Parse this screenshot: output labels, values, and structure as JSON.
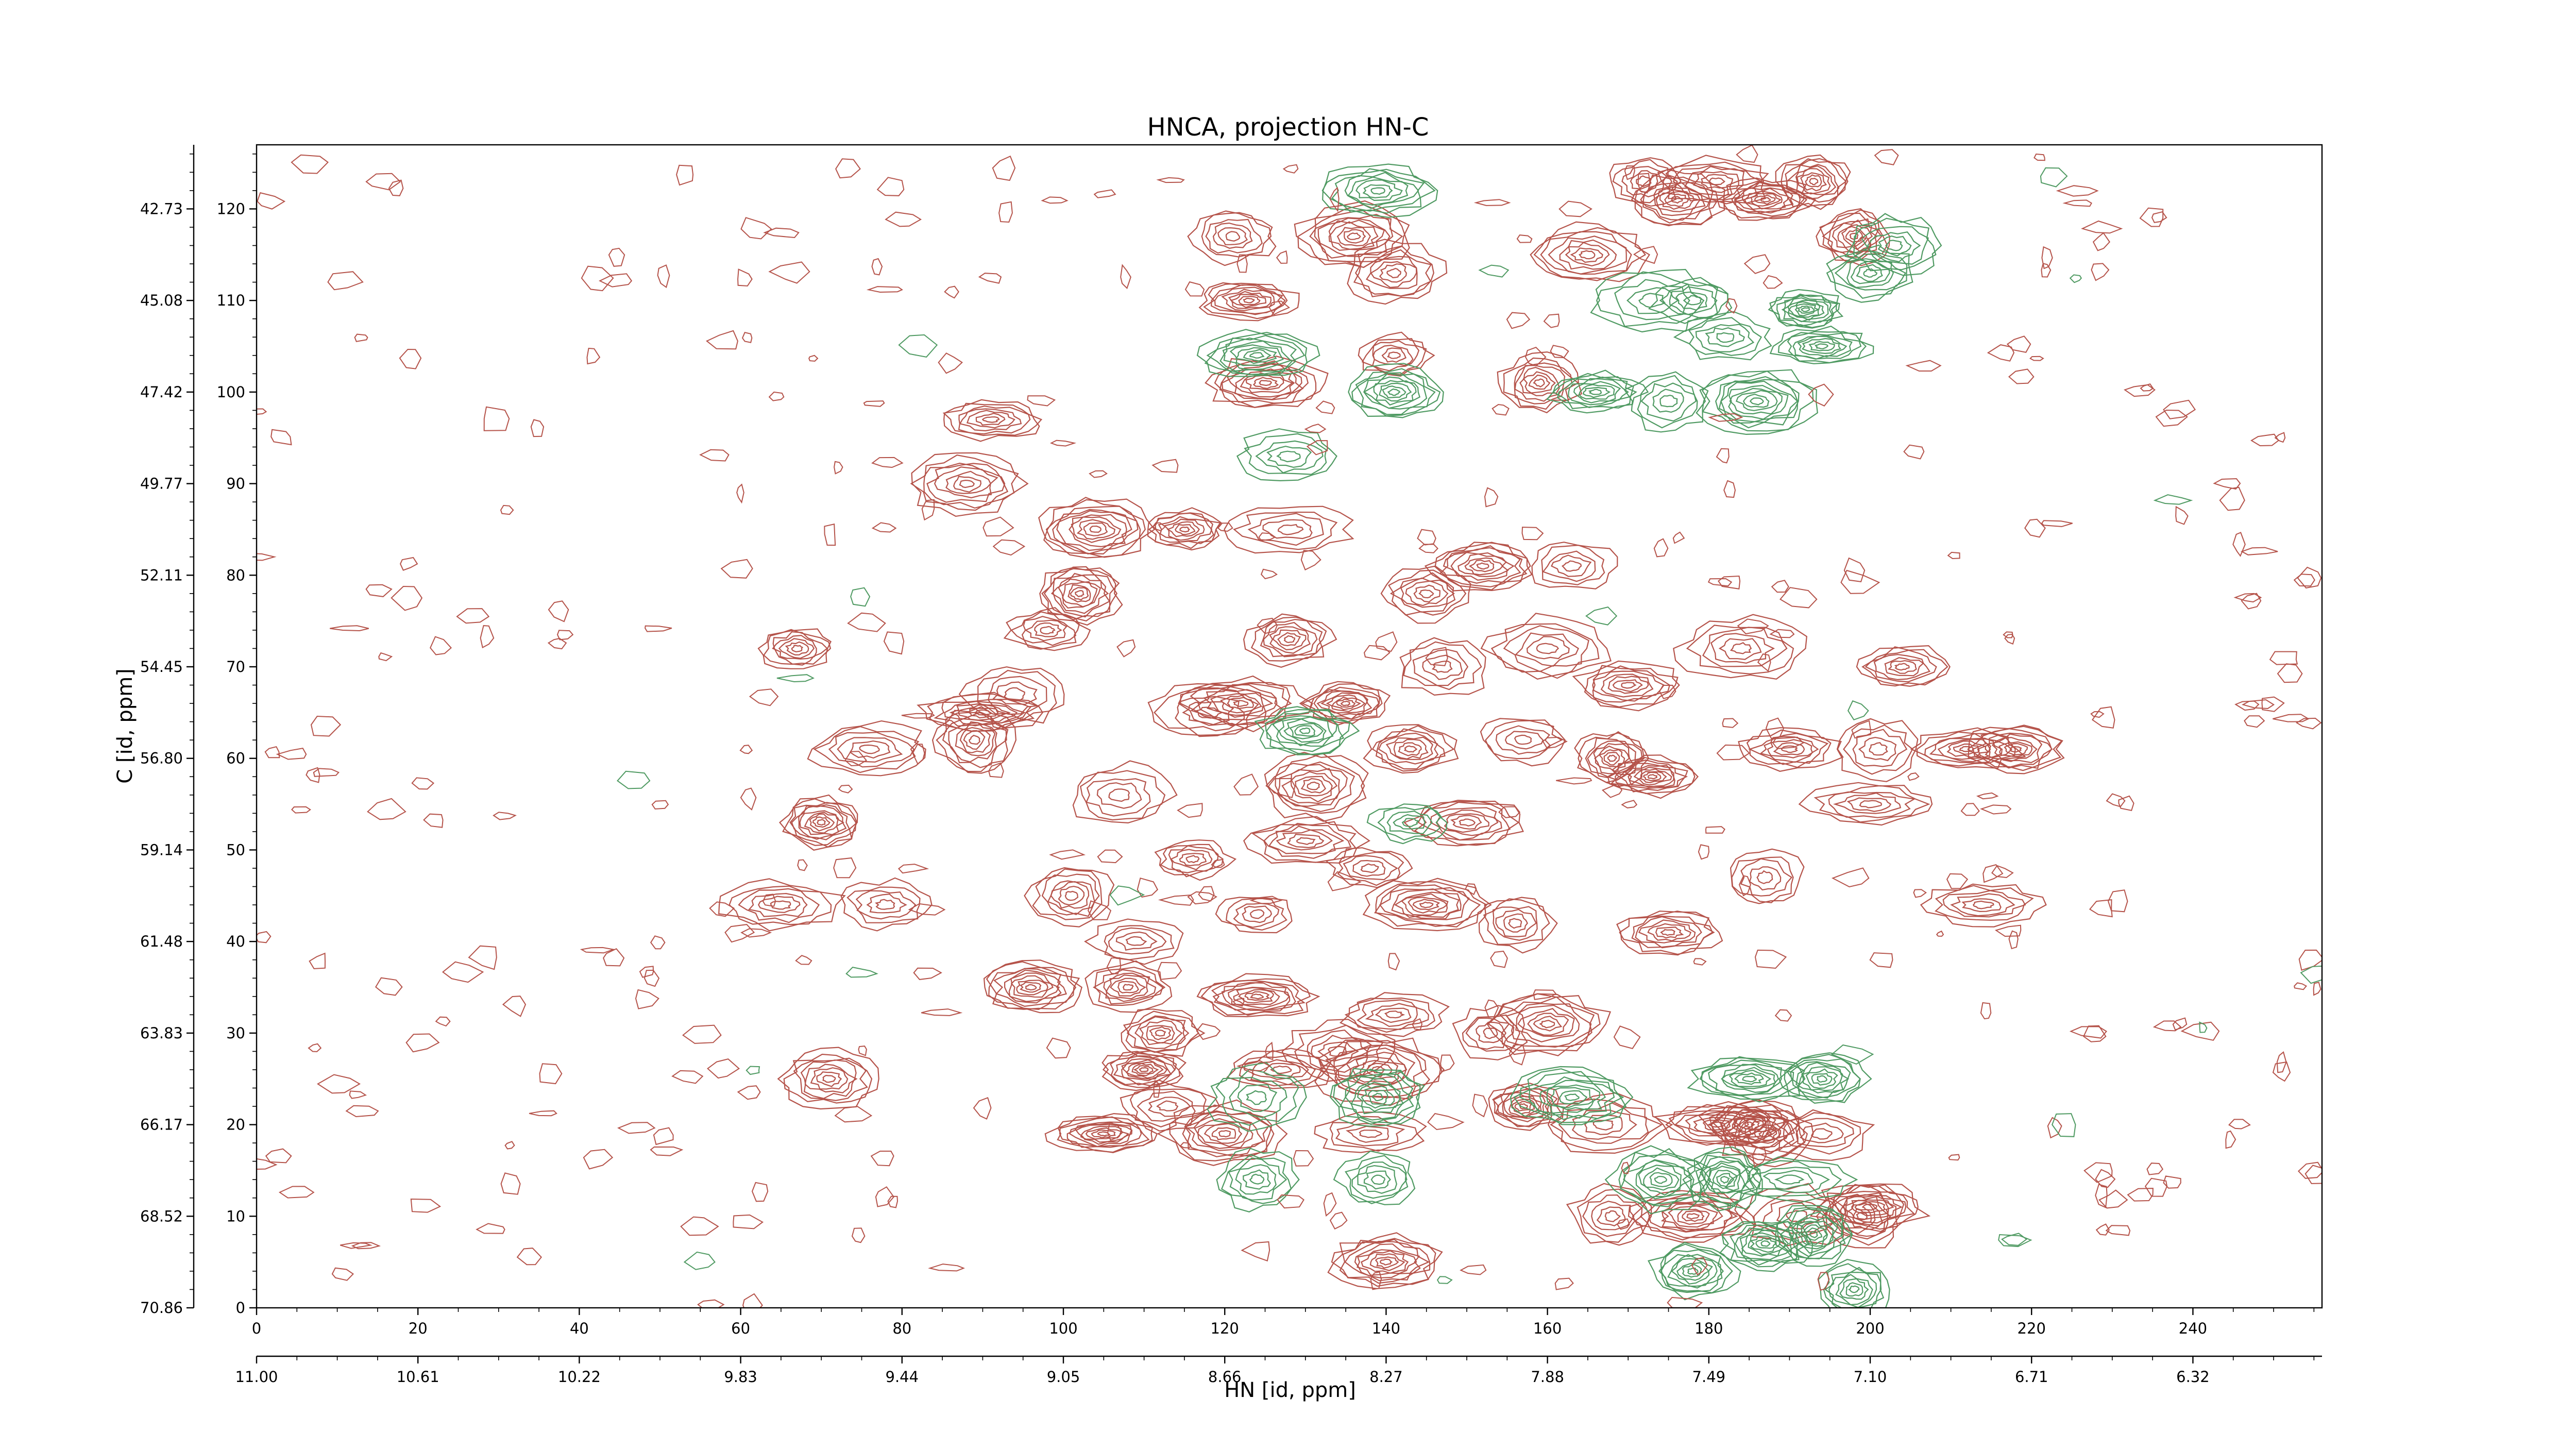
{
  "chart_data": {
    "type": "contour",
    "title": "HNCA, projection HN-C",
    "xlabel": "HN [id, ppm]",
    "ylabel": "C [id, ppm]",
    "x_index_ticks": [
      "0",
      "20",
      "40",
      "60",
      "80",
      "100",
      "120",
      "140",
      "160",
      "180",
      "200",
      "220",
      "240"
    ],
    "x_ppm_ticks": [
      "11.00",
      "10.61",
      "10.22",
      "9.83",
      "9.44",
      "9.05",
      "8.66",
      "8.27",
      "7.88",
      "7.49",
      "7.10",
      "6.71",
      "6.32"
    ],
    "y_index_ticks": [
      "0",
      "10",
      "20",
      "30",
      "40",
      "50",
      "60",
      "70",
      "80",
      "90",
      "100",
      "110",
      "120"
    ],
    "y_ppm_ticks": [
      "70.86",
      "68.52",
      "66.17",
      "63.83",
      "61.48",
      "59.14",
      "56.80",
      "54.45",
      "52.11",
      "49.77",
      "47.42",
      "45.08",
      "42.73"
    ],
    "xlim": [
      0,
      256
    ],
    "ylim": [
      0,
      127
    ],
    "grid": false,
    "legend": "none",
    "colors": {
      "positive": "#b5534a",
      "negative": "#4f9a62"
    },
    "peaks_positive": [
      {
        "x": 67,
        "y": 72
      },
      {
        "x": 76,
        "y": 61
      },
      {
        "x": 90,
        "y": 65
      },
      {
        "x": 70,
        "y": 53
      },
      {
        "x": 65,
        "y": 44
      },
      {
        "x": 78,
        "y": 44
      },
      {
        "x": 71,
        "y": 25
      },
      {
        "x": 88,
        "y": 90
      },
      {
        "x": 91,
        "y": 97
      },
      {
        "x": 98,
        "y": 74
      },
      {
        "x": 104,
        "y": 85
      },
      {
        "x": 115,
        "y": 85
      },
      {
        "x": 128,
        "y": 85
      },
      {
        "x": 107,
        "y": 56
      },
      {
        "x": 101,
        "y": 45
      },
      {
        "x": 96,
        "y": 35
      },
      {
        "x": 109,
        "y": 40
      },
      {
        "x": 108,
        "y": 35
      },
      {
        "x": 110,
        "y": 26
      },
      {
        "x": 105,
        "y": 19
      },
      {
        "x": 113,
        "y": 22
      },
      {
        "x": 120,
        "y": 19
      },
      {
        "x": 124,
        "y": 43
      },
      {
        "x": 124,
        "y": 34
      },
      {
        "x": 122,
        "y": 66
      },
      {
        "x": 128,
        "y": 73
      },
      {
        "x": 135,
        "y": 66
      },
      {
        "x": 131,
        "y": 57
      },
      {
        "x": 143,
        "y": 61
      },
      {
        "x": 147,
        "y": 70
      },
      {
        "x": 150,
        "y": 53
      },
      {
        "x": 138,
        "y": 48
      },
      {
        "x": 145,
        "y": 44
      },
      {
        "x": 141,
        "y": 32
      },
      {
        "x": 156,
        "y": 42
      },
      {
        "x": 157,
        "y": 62
      },
      {
        "x": 160,
        "y": 72
      },
      {
        "x": 163,
        "y": 81
      },
      {
        "x": 168,
        "y": 60
      },
      {
        "x": 170,
        "y": 68
      },
      {
        "x": 175,
        "y": 41
      },
      {
        "x": 157,
        "y": 22
      },
      {
        "x": 160,
        "y": 31
      },
      {
        "x": 130,
        "y": 51
      },
      {
        "x": 116,
        "y": 49
      },
      {
        "x": 118,
        "y": 65
      },
      {
        "x": 139,
        "y": 26
      },
      {
        "x": 138,
        "y": 19
      },
      {
        "x": 140,
        "y": 5
      },
      {
        "x": 141,
        "y": 113
      },
      {
        "x": 141,
        "y": 104
      },
      {
        "x": 136,
        "y": 117
      },
      {
        "x": 121,
        "y": 117
      },
      {
        "x": 123,
        "y": 110
      },
      {
        "x": 125,
        "y": 101
      },
      {
        "x": 165,
        "y": 115
      },
      {
        "x": 172,
        "y": 123
      },
      {
        "x": 176,
        "y": 121
      },
      {
        "x": 181,
        "y": 123
      },
      {
        "x": 187,
        "y": 121
      },
      {
        "x": 193,
        "y": 123
      },
      {
        "x": 198,
        "y": 117
      },
      {
        "x": 159,
        "y": 101
      },
      {
        "x": 187,
        "y": 47
      },
      {
        "x": 190,
        "y": 61
      },
      {
        "x": 201,
        "y": 61
      },
      {
        "x": 204,
        "y": 70
      },
      {
        "x": 212,
        "y": 61
      },
      {
        "x": 218,
        "y": 61
      },
      {
        "x": 214,
        "y": 44
      },
      {
        "x": 181,
        "y": 20
      },
      {
        "x": 187,
        "y": 19
      },
      {
        "x": 194,
        "y": 19
      },
      {
        "x": 200,
        "y": 11
      },
      {
        "x": 168,
        "y": 10
      },
      {
        "x": 178,
        "y": 10
      },
      {
        "x": 191,
        "y": 10
      },
      {
        "x": 199,
        "y": 10
      },
      {
        "x": 185,
        "y": 20
      },
      {
        "x": 167,
        "y": 20
      },
      {
        "x": 173,
        "y": 58
      },
      {
        "x": 184,
        "y": 72
      },
      {
        "x": 152,
        "y": 81
      },
      {
        "x": 134,
        "y": 28
      },
      {
        "x": 127,
        "y": 26
      },
      {
        "x": 112,
        "y": 30
      },
      {
        "x": 89,
        "y": 62
      },
      {
        "x": 94,
        "y": 67
      },
      {
        "x": 102,
        "y": 78
      },
      {
        "x": 145,
        "y": 78
      },
      {
        "x": 153,
        "y": 30
      },
      {
        "x": 200,
        "y": 55
      }
    ],
    "peaks_negative": [
      {
        "x": 124,
        "y": 23
      },
      {
        "x": 124,
        "y": 14
      },
      {
        "x": 139,
        "y": 23
      },
      {
        "x": 139,
        "y": 14
      },
      {
        "x": 163,
        "y": 23
      },
      {
        "x": 174,
        "y": 14
      },
      {
        "x": 182,
        "y": 14
      },
      {
        "x": 190,
        "y": 14
      },
      {
        "x": 185,
        "y": 25
      },
      {
        "x": 194,
        "y": 25
      },
      {
        "x": 187,
        "y": 7
      },
      {
        "x": 178,
        "y": 4
      },
      {
        "x": 193,
        "y": 8
      },
      {
        "x": 198,
        "y": 2
      },
      {
        "x": 173,
        "y": 110
      },
      {
        "x": 178,
        "y": 110
      },
      {
        "x": 182,
        "y": 106
      },
      {
        "x": 192,
        "y": 109
      },
      {
        "x": 194,
        "y": 105
      },
      {
        "x": 200,
        "y": 113
      },
      {
        "x": 203,
        "y": 116
      },
      {
        "x": 139,
        "y": 122
      },
      {
        "x": 128,
        "y": 93
      },
      {
        "x": 175,
        "y": 99
      },
      {
        "x": 186,
        "y": 99
      },
      {
        "x": 124,
        "y": 104
      },
      {
        "x": 141,
        "y": 100
      },
      {
        "x": 166,
        "y": 100
      },
      {
        "x": 130,
        "y": 63
      },
      {
        "x": 143,
        "y": 53
      }
    ]
  }
}
